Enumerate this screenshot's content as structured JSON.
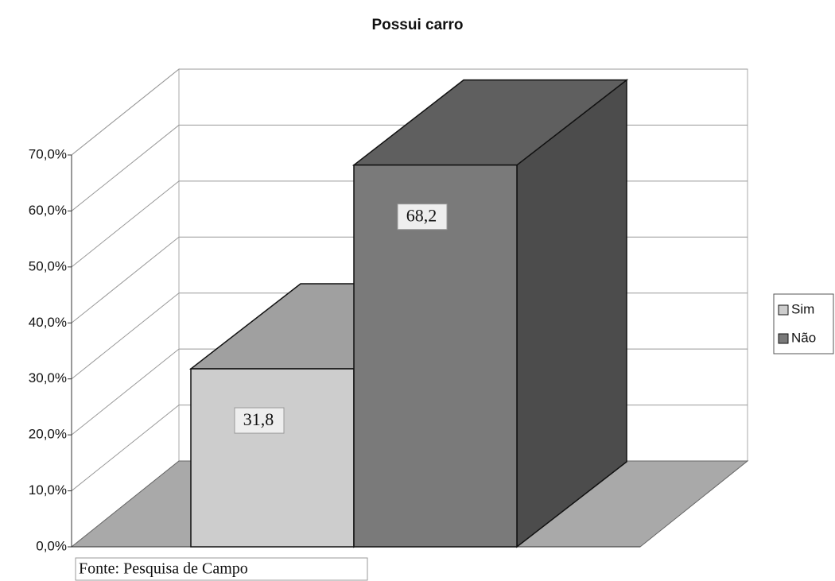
{
  "chart_data": {
    "type": "bar3d",
    "title": "Possui carro",
    "series": [
      {
        "name": "Sim",
        "color": "#cdcdcd",
        "values": [
          31.8
        ],
        "value_labels": [
          "31,8"
        ]
      },
      {
        "name": "Não",
        "color": "#7a7a7a",
        "values": [
          68.2
        ],
        "value_labels": [
          "68,2"
        ]
      }
    ],
    "ylim": [
      0,
      70
    ],
    "yticks": [
      {
        "value": 0,
        "label": "0,0%"
      },
      {
        "value": 10,
        "label": "10,0%"
      },
      {
        "value": 20,
        "label": "20,0%"
      },
      {
        "value": 30,
        "label": "30,0%"
      },
      {
        "value": 40,
        "label": "40,0%"
      },
      {
        "value": 50,
        "label": "50,0%"
      },
      {
        "value": 60,
        "label": "60,0%"
      },
      {
        "value": 70,
        "label": "70,0%"
      }
    ],
    "grid": true,
    "legend": "right",
    "note": "Fonte: Pesquisa de Campo"
  }
}
